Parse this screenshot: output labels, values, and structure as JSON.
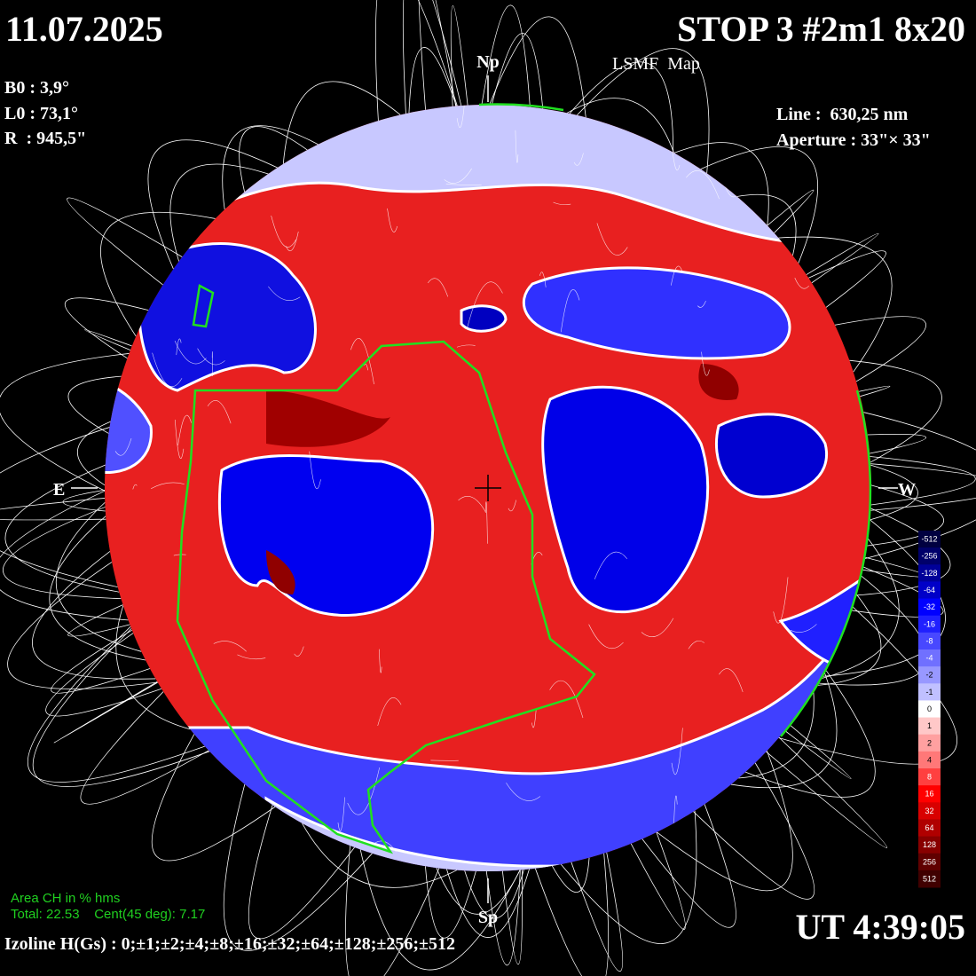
{
  "header": {
    "date": "11.07.2025",
    "title": "STOP 3 #2m1 8x20",
    "subtitle": "LSMF  Map"
  },
  "params": [
    "B0 : 3,9°",
    "L0 : 73,1°",
    "R  : 945,5\""
  ],
  "instrument": [
    "Line :  630,25 nm",
    "Aperture : 33\"× 33\""
  ],
  "directions": {
    "north": "Np",
    "south": "Sp",
    "east": "E",
    "west": "W"
  },
  "coronal_hole": {
    "title": "Area CH in % hms",
    "stats": "Total: 22.53    Cent(45 deg): 7.17"
  },
  "isolines": "Izoline H(Gs) : 0;±1;±2;±4;±8;±16;±32;±64;±128;±256;±512",
  "time": "UT 4:39:05",
  "colorbar": {
    "labels": [
      "-512",
      "-256",
      "-128",
      "-64",
      "-32",
      "-16",
      "-8",
      "-4",
      "-2",
      "-1",
      "0",
      "1",
      "2",
      "4",
      "8",
      "16",
      "32",
      "64",
      "128",
      "256",
      "512"
    ],
    "colors": [
      "#000040",
      "#00006a",
      "#000099",
      "#0000c8",
      "#0000ff",
      "#2020ff",
      "#4848ff",
      "#7070ff",
      "#9898ff",
      "#c0c0ff",
      "#ffffff",
      "#ffc8c8",
      "#ffa0a0",
      "#ff7878",
      "#ff4040",
      "#ff0000",
      "#d80000",
      "#b00000",
      "#880000",
      "#600000",
      "#400000"
    ]
  }
}
